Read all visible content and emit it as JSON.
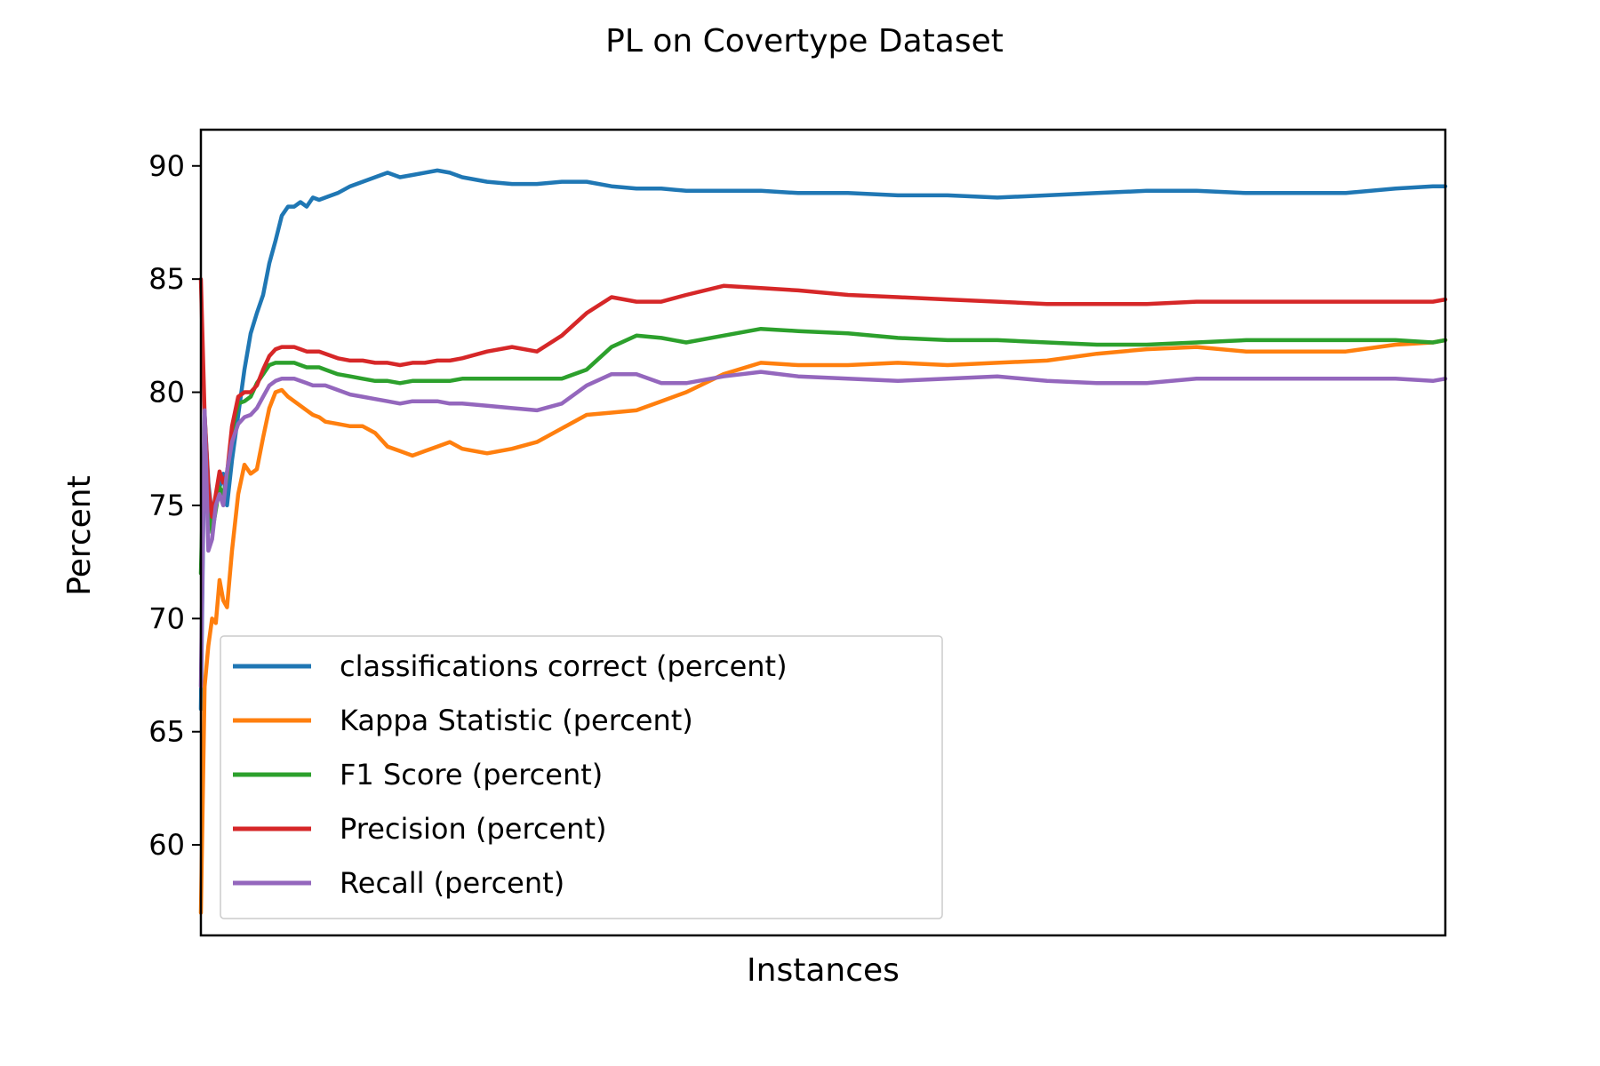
{
  "chart_data": {
    "type": "line",
    "title": "PL on Covertype Dataset",
    "xlabel": "Instances",
    "ylabel": "Percent",
    "ylim": [
      56.0,
      91.6
    ],
    "xlim": [
      0,
      1000
    ],
    "yticks": [
      60,
      65,
      70,
      75,
      80,
      85,
      90
    ],
    "grid": false,
    "legend_position": "lower-left",
    "series": [
      {
        "name": "classifications correct (percent)",
        "color": "#1f77b4",
        "x": [
          0,
          3,
          6,
          9,
          12,
          15,
          18,
          21,
          25,
          30,
          35,
          40,
          45,
          50,
          55,
          60,
          65,
          70,
          75,
          80,
          85,
          90,
          95,
          100,
          110,
          120,
          130,
          140,
          150,
          160,
          170,
          180,
          190,
          200,
          210,
          230,
          250,
          270,
          290,
          310,
          330,
          350,
          370,
          390,
          420,
          450,
          480,
          520,
          560,
          600,
          640,
          680,
          720,
          760,
          800,
          840,
          880,
          920,
          960,
          990,
          1000
        ],
        "values": [
          66.0,
          79.0,
          76.0,
          74.5,
          75.2,
          75.8,
          76.4,
          75.0,
          77.0,
          79.0,
          81.0,
          82.6,
          83.5,
          84.3,
          85.7,
          86.7,
          87.8,
          88.2,
          88.2,
          88.4,
          88.2,
          88.6,
          88.5,
          88.6,
          88.8,
          89.1,
          89.3,
          89.5,
          89.7,
          89.5,
          89.6,
          89.7,
          89.8,
          89.7,
          89.5,
          89.3,
          89.2,
          89.2,
          89.3,
          89.3,
          89.1,
          89.0,
          89.0,
          88.9,
          88.9,
          88.9,
          88.8,
          88.8,
          88.7,
          88.7,
          88.6,
          88.7,
          88.8,
          88.9,
          88.9,
          88.8,
          88.8,
          88.8,
          89.0,
          89.1,
          89.1
        ]
      },
      {
        "name": "Kappa Statistic (percent)",
        "color": "#ff7f0e",
        "x": [
          0,
          3,
          6,
          9,
          12,
          15,
          18,
          21,
          25,
          30,
          35,
          40,
          45,
          50,
          55,
          60,
          65,
          70,
          75,
          80,
          85,
          90,
          95,
          100,
          110,
          120,
          130,
          140,
          150,
          160,
          170,
          180,
          190,
          200,
          210,
          230,
          250,
          270,
          290,
          310,
          330,
          350,
          370,
          390,
          420,
          450,
          480,
          520,
          560,
          600,
          640,
          680,
          720,
          760,
          800,
          840,
          880,
          920,
          960,
          990,
          1000
        ],
        "values": [
          57.0,
          67.0,
          68.8,
          70.0,
          69.8,
          71.7,
          70.8,
          70.5,
          73.0,
          75.5,
          76.8,
          76.4,
          76.6,
          78.0,
          79.3,
          80.0,
          80.1,
          79.8,
          79.6,
          79.4,
          79.2,
          79.0,
          78.9,
          78.7,
          78.6,
          78.5,
          78.5,
          78.2,
          77.6,
          77.4,
          77.2,
          77.4,
          77.6,
          77.8,
          77.5,
          77.3,
          77.5,
          77.8,
          78.4,
          79.0,
          79.1,
          79.2,
          79.6,
          80.0,
          80.8,
          81.3,
          81.2,
          81.2,
          81.3,
          81.2,
          81.3,
          81.4,
          81.7,
          81.9,
          82.0,
          81.8,
          81.8,
          81.8,
          82.1,
          82.2,
          82.3
        ]
      },
      {
        "name": "F1 Score (percent)",
        "color": "#2ca02c",
        "x": [
          0,
          3,
          6,
          9,
          12,
          15,
          18,
          21,
          25,
          30,
          35,
          40,
          45,
          50,
          55,
          60,
          65,
          70,
          75,
          80,
          85,
          90,
          95,
          100,
          110,
          120,
          130,
          140,
          150,
          160,
          170,
          180,
          190,
          200,
          210,
          230,
          250,
          270,
          290,
          310,
          330,
          350,
          370,
          390,
          420,
          450,
          480,
          520,
          560,
          600,
          640,
          680,
          720,
          760,
          800,
          840,
          880,
          920,
          960,
          990,
          1000
        ],
        "values": [
          72.0,
          78.5,
          75.5,
          73.8,
          74.8,
          75.8,
          75.5,
          76.2,
          78.3,
          79.5,
          79.6,
          79.8,
          80.4,
          80.8,
          81.2,
          81.3,
          81.3,
          81.3,
          81.3,
          81.2,
          81.1,
          81.1,
          81.1,
          81.0,
          80.8,
          80.7,
          80.6,
          80.5,
          80.5,
          80.4,
          80.5,
          80.5,
          80.5,
          80.5,
          80.6,
          80.6,
          80.6,
          80.6,
          80.6,
          81.0,
          82.0,
          82.5,
          82.4,
          82.2,
          82.5,
          82.8,
          82.7,
          82.6,
          82.4,
          82.3,
          82.3,
          82.2,
          82.1,
          82.1,
          82.2,
          82.3,
          82.3,
          82.3,
          82.3,
          82.2,
          82.3
        ]
      },
      {
        "name": "Precision (percent)",
        "color": "#d62728",
        "x": [
          0,
          3,
          6,
          9,
          12,
          15,
          18,
          21,
          25,
          30,
          35,
          40,
          45,
          50,
          55,
          60,
          65,
          70,
          75,
          80,
          85,
          90,
          95,
          100,
          110,
          120,
          130,
          140,
          150,
          160,
          170,
          180,
          190,
          200,
          210,
          230,
          250,
          270,
          290,
          310,
          330,
          350,
          370,
          390,
          420,
          450,
          480,
          520,
          560,
          600,
          640,
          680,
          720,
          760,
          800,
          840,
          880,
          920,
          960,
          990,
          1000
        ],
        "values": [
          85.0,
          79.0,
          75.8,
          74.5,
          75.5,
          76.5,
          76.0,
          76.4,
          78.5,
          79.8,
          80.0,
          80.0,
          80.3,
          81.0,
          81.6,
          81.9,
          82.0,
          82.0,
          82.0,
          81.9,
          81.8,
          81.8,
          81.8,
          81.7,
          81.5,
          81.4,
          81.4,
          81.3,
          81.3,
          81.2,
          81.3,
          81.3,
          81.4,
          81.4,
          81.5,
          81.8,
          82.0,
          81.8,
          82.5,
          83.5,
          84.2,
          84.0,
          84.0,
          84.3,
          84.7,
          84.6,
          84.5,
          84.3,
          84.2,
          84.1,
          84.0,
          83.9,
          83.9,
          83.9,
          84.0,
          84.0,
          84.0,
          84.0,
          84.0,
          84.0,
          84.1
        ]
      },
      {
        "name": "Recall (percent)",
        "color": "#9467bd",
        "x": [
          0,
          3,
          6,
          9,
          12,
          15,
          18,
          21,
          25,
          30,
          35,
          40,
          45,
          50,
          55,
          60,
          65,
          70,
          75,
          80,
          85,
          90,
          95,
          100,
          110,
          120,
          130,
          140,
          150,
          160,
          170,
          180,
          190,
          200,
          210,
          230,
          250,
          270,
          290,
          310,
          330,
          350,
          370,
          390,
          420,
          450,
          480,
          520,
          560,
          600,
          640,
          680,
          720,
          760,
          800,
          840,
          880,
          920,
          960,
          990,
          1000
        ],
        "values": [
          67.0,
          79.2,
          73.0,
          73.5,
          75.0,
          75.5,
          75.0,
          76.5,
          77.8,
          78.6,
          78.9,
          79.0,
          79.3,
          79.8,
          80.3,
          80.5,
          80.6,
          80.6,
          80.6,
          80.5,
          80.4,
          80.3,
          80.3,
          80.3,
          80.1,
          79.9,
          79.8,
          79.7,
          79.6,
          79.5,
          79.6,
          79.6,
          79.6,
          79.5,
          79.5,
          79.4,
          79.3,
          79.2,
          79.5,
          80.3,
          80.8,
          80.8,
          80.4,
          80.4,
          80.7,
          80.9,
          80.7,
          80.6,
          80.5,
          80.6,
          80.7,
          80.5,
          80.4,
          80.4,
          80.6,
          80.6,
          80.6,
          80.6,
          80.6,
          80.5,
          80.6
        ]
      }
    ]
  }
}
